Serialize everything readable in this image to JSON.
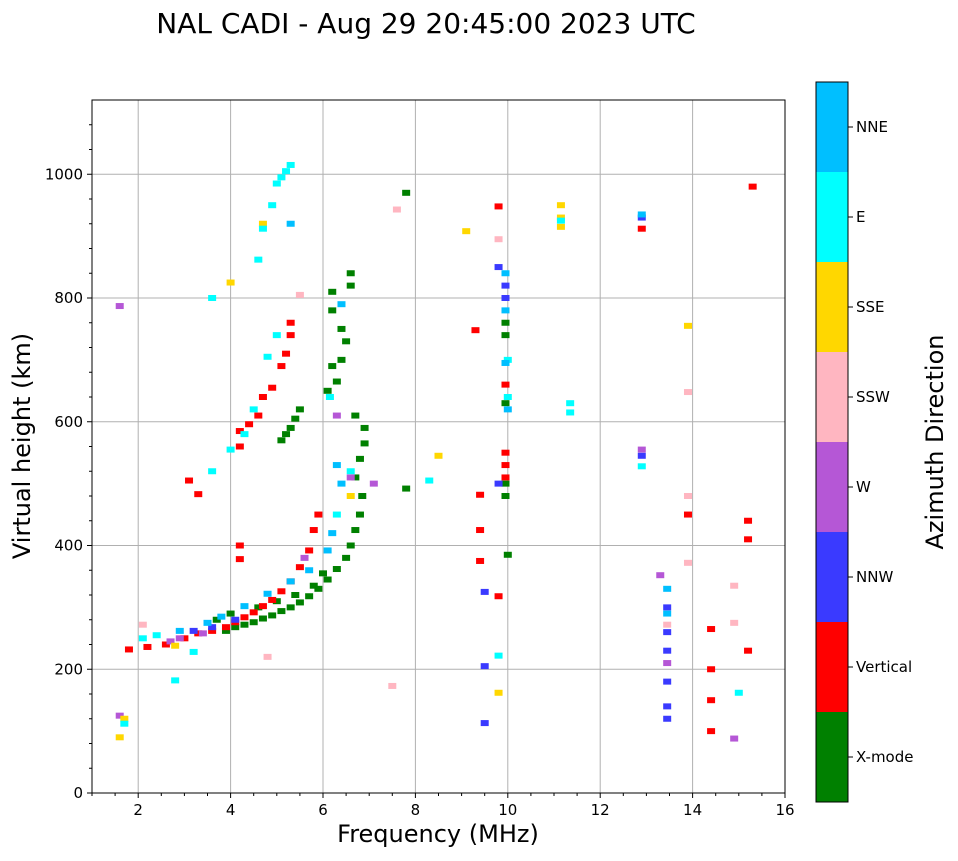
{
  "chart_data": {
    "type": "scatter",
    "title": "NAL CADI - Aug 29 20:45:00 2023 UTC",
    "xlabel": "Frequency (MHz)",
    "ylabel": "Virtual height (km)",
    "xlim": [
      1,
      16
    ],
    "ylim": [
      0,
      1120
    ],
    "x_ticks": [
      2,
      4,
      6,
      8,
      10,
      12,
      14,
      16
    ],
    "y_ticks": [
      0,
      200,
      400,
      600,
      800,
      1000
    ],
    "grid": true,
    "colorbar": {
      "label": "Azimuth Direction",
      "categories": [
        "X-mode",
        "Vertical",
        "NNW",
        "W",
        "SSW",
        "SSE",
        "E",
        "NNE"
      ],
      "colors": [
        "#008000",
        "#ff0000",
        "#3a3aff",
        "#b557d6",
        "#ffb6c1",
        "#ffd700",
        "#00ffff",
        "#00bfff"
      ]
    },
    "series": [
      {
        "name": "X-mode",
        "points": [
          [
            3.9,
            262
          ],
          [
            4.1,
            268
          ],
          [
            4.3,
            272
          ],
          [
            4.5,
            276
          ],
          [
            4.7,
            282
          ],
          [
            4.9,
            287
          ],
          [
            5.1,
            294
          ],
          [
            5.3,
            300
          ],
          [
            5.5,
            308
          ],
          [
            5.7,
            318
          ],
          [
            5.9,
            330
          ],
          [
            6.1,
            345
          ],
          [
            6.3,
            362
          ],
          [
            6.5,
            380
          ],
          [
            6.6,
            400
          ],
          [
            6.7,
            425
          ],
          [
            6.8,
            450
          ],
          [
            6.85,
            480
          ],
          [
            6.7,
            510
          ],
          [
            6.8,
            540
          ],
          [
            6.9,
            565
          ],
          [
            6.9,
            590
          ],
          [
            6.7,
            610
          ],
          [
            6.6,
            820
          ],
          [
            6.6,
            840
          ],
          [
            6.2,
            810
          ],
          [
            6.2,
            780
          ],
          [
            6.4,
            750
          ],
          [
            6.5,
            730
          ],
          [
            6.4,
            700
          ],
          [
            6.2,
            690
          ],
          [
            6.3,
            665
          ],
          [
            6.1,
            650
          ],
          [
            5.5,
            620
          ],
          [
            5.4,
            605
          ],
          [
            5.3,
            590
          ],
          [
            5.2,
            580
          ],
          [
            5.1,
            570
          ],
          [
            7.8,
            970
          ],
          [
            7.8,
            492
          ],
          [
            9.95,
            760
          ],
          [
            9.95,
            740
          ],
          [
            9.95,
            630
          ],
          [
            9.95,
            500
          ],
          [
            9.95,
            480
          ],
          [
            10.0,
            385
          ],
          [
            3.7,
            280
          ],
          [
            4.0,
            290
          ],
          [
            4.6,
            300
          ],
          [
            5.0,
            310
          ],
          [
            5.4,
            320
          ],
          [
            5.8,
            335
          ],
          [
            6.0,
            355
          ]
        ]
      },
      {
        "name": "Vertical",
        "points": [
          [
            1.8,
            232
          ],
          [
            2.2,
            236
          ],
          [
            2.6,
            240
          ],
          [
            3.0,
            250
          ],
          [
            3.3,
            258
          ],
          [
            3.6,
            262
          ],
          [
            3.9,
            268
          ],
          [
            4.1,
            276
          ],
          [
            4.3,
            284
          ],
          [
            4.5,
            292
          ],
          [
            4.7,
            302
          ],
          [
            4.9,
            312
          ],
          [
            5.1,
            326
          ],
          [
            5.3,
            342
          ],
          [
            5.5,
            365
          ],
          [
            5.7,
            392
          ],
          [
            5.8,
            425
          ],
          [
            5.9,
            450
          ],
          [
            4.2,
            560
          ],
          [
            4.2,
            585
          ],
          [
            4.4,
            596
          ],
          [
            4.6,
            610
          ],
          [
            4.7,
            640
          ],
          [
            4.9,
            655
          ],
          [
            5.1,
            690
          ],
          [
            5.2,
            710
          ],
          [
            5.3,
            740
          ],
          [
            5.3,
            760
          ],
          [
            4.2,
            378
          ],
          [
            4.2,
            400
          ],
          [
            3.3,
            483
          ],
          [
            3.1,
            505
          ],
          [
            9.4,
            482
          ],
          [
            9.4,
            425
          ],
          [
            9.4,
            375
          ],
          [
            9.8,
            318
          ],
          [
            9.8,
            948
          ],
          [
            9.3,
            748
          ],
          [
            9.95,
            550
          ],
          [
            9.95,
            530
          ],
          [
            9.95,
            510
          ],
          [
            9.95,
            660
          ],
          [
            12.9,
            912
          ],
          [
            13.9,
            450
          ],
          [
            14.4,
            265
          ],
          [
            14.4,
            100
          ],
          [
            14.4,
            150
          ],
          [
            14.4,
            200
          ],
          [
            15.2,
            440
          ],
          [
            15.2,
            410
          ],
          [
            15.2,
            230
          ],
          [
            15.3,
            980
          ]
        ]
      },
      {
        "name": "NNW",
        "points": [
          [
            9.5,
            325
          ],
          [
            9.5,
            205
          ],
          [
            9.5,
            113
          ],
          [
            9.8,
            500
          ],
          [
            9.8,
            850
          ],
          [
            9.95,
            820
          ],
          [
            9.95,
            800
          ],
          [
            12.9,
            930
          ],
          [
            12.9,
            545
          ],
          [
            13.45,
            300
          ],
          [
            13.45,
            260
          ],
          [
            13.45,
            230
          ],
          [
            13.45,
            180
          ],
          [
            13.45,
            140
          ],
          [
            13.45,
            120
          ],
          [
            3.2,
            262
          ],
          [
            3.6,
            268
          ],
          [
            4.1,
            280
          ]
        ]
      },
      {
        "name": "W",
        "points": [
          [
            1.6,
            787
          ],
          [
            2.7,
            245
          ],
          [
            2.9,
            250
          ],
          [
            3.4,
            258
          ],
          [
            6.6,
            510
          ],
          [
            7.1,
            500
          ],
          [
            12.9,
            555
          ],
          [
            13.3,
            352
          ],
          [
            13.45,
            210
          ],
          [
            14.9,
            88
          ],
          [
            5.6,
            380
          ],
          [
            6.3,
            610
          ],
          [
            1.6,
            125
          ]
        ]
      },
      {
        "name": "SSW",
        "points": [
          [
            2.1,
            272
          ],
          [
            7.6,
            943
          ],
          [
            7.5,
            173
          ],
          [
            9.8,
            895
          ],
          [
            13.9,
            480
          ],
          [
            13.9,
            648
          ],
          [
            13.9,
            372
          ],
          [
            14.9,
            335
          ],
          [
            14.9,
            275
          ],
          [
            4.8,
            220
          ],
          [
            5.5,
            805
          ],
          [
            13.45,
            272
          ]
        ]
      },
      {
        "name": "SSE",
        "points": [
          [
            1.6,
            90
          ],
          [
            1.7,
            120
          ],
          [
            4.0,
            825
          ],
          [
            4.7,
            920
          ],
          [
            8.5,
            545
          ],
          [
            9.1,
            908
          ],
          [
            9.8,
            162
          ],
          [
            11.15,
            950
          ],
          [
            11.15,
            930
          ],
          [
            11.15,
            915
          ],
          [
            13.9,
            755
          ],
          [
            2.8,
            238
          ],
          [
            6.6,
            480
          ]
        ]
      },
      {
        "name": "E",
        "points": [
          [
            2.1,
            250
          ],
          [
            2.4,
            255
          ],
          [
            3.2,
            228
          ],
          [
            3.6,
            520
          ],
          [
            4.0,
            555
          ],
          [
            4.3,
            580
          ],
          [
            4.5,
            620
          ],
          [
            4.8,
            705
          ],
          [
            5.0,
            740
          ],
          [
            4.6,
            862
          ],
          [
            4.7,
            912
          ],
          [
            4.9,
            950
          ],
          [
            5.0,
            985
          ],
          [
            5.1,
            995
          ],
          [
            5.2,
            1005
          ],
          [
            5.3,
            1015
          ],
          [
            3.6,
            800
          ],
          [
            2.8,
            182
          ],
          [
            8.3,
            505
          ],
          [
            9.8,
            222
          ],
          [
            10.0,
            700
          ],
          [
            10.0,
            640
          ],
          [
            11.35,
            630
          ],
          [
            11.35,
            615
          ],
          [
            11.15,
            925
          ],
          [
            12.9,
            528
          ],
          [
            15.0,
            162
          ],
          [
            6.15,
            640
          ],
          [
            6.3,
            450
          ],
          [
            6.6,
            520
          ],
          [
            1.7,
            112
          ]
        ]
      },
      {
        "name": "NNE",
        "points": [
          [
            2.9,
            262
          ],
          [
            3.5,
            275
          ],
          [
            3.8,
            285
          ],
          [
            4.3,
            302
          ],
          [
            4.8,
            322
          ],
          [
            5.3,
            342
          ],
          [
            5.7,
            360
          ],
          [
            6.1,
            392
          ],
          [
            6.2,
            420
          ],
          [
            6.4,
            500
          ],
          [
            6.3,
            530
          ],
          [
            5.3,
            920
          ],
          [
            6.4,
            790
          ],
          [
            9.95,
            840
          ],
          [
            9.95,
            780
          ],
          [
            9.95,
            695
          ],
          [
            10.0,
            620
          ],
          [
            13.45,
            330
          ],
          [
            13.45,
            290
          ],
          [
            12.9,
            935
          ]
        ]
      }
    ]
  }
}
